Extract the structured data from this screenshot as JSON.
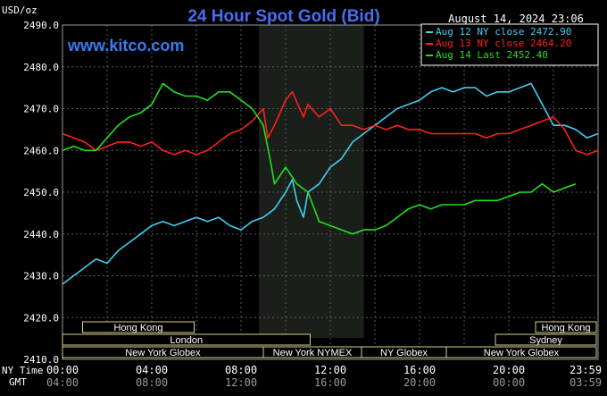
{
  "chart_data": {
    "type": "line",
    "title": "24 Hour Spot Gold (Bid)",
    "subtitle": "www.kitco.com",
    "timestamp": "August 14, 2024 23:06",
    "y_unit_label": "USD/oz",
    "ylim": [
      2410,
      2490
    ],
    "y_ticks": [
      "2490.0",
      "2480.0",
      "2470.0",
      "2460.0",
      "2450.0",
      "2440.0",
      "2430.0",
      "2420.0",
      "2410.0"
    ],
    "x_row1_label": "NY Time",
    "x_row2_label": "GMT",
    "x_ticks_ny": [
      "00:00",
      "04:00",
      "08:00",
      "12:00",
      "16:00",
      "20:00",
      "23:59"
    ],
    "x_ticks_gmt": [
      "04:00",
      "08:00",
      "12:00",
      "16:00",
      "20:00",
      "00:00",
      "03:59"
    ],
    "xlim_hours": [
      0,
      24
    ],
    "grid": true,
    "legend_position": "top-right",
    "legend": [
      {
        "label": "Aug 12 NY close 2472.90",
        "color": "#40d0f0"
      },
      {
        "label": "Aug 13 NY close 2464.20",
        "color": "#ff2020"
      },
      {
        "label": "Aug 14 Last 2452.40",
        "color": "#20e020"
      }
    ],
    "sessions": [
      {
        "name": "Hong Kong",
        "row": 0
      },
      {
        "name": "Hong Kong",
        "row": 0
      },
      {
        "name": "London",
        "row": 1
      },
      {
        "name": "Sydney",
        "row": 1
      },
      {
        "name": "New York Globex",
        "row": 2
      },
      {
        "name": "New York NYMEX",
        "row": 2
      },
      {
        "name": "NY Globex",
        "row": 2
      },
      {
        "name": "New York Globex",
        "row": 2
      }
    ],
    "series": [
      {
        "name": "Aug 12 NY close 2472.90",
        "color": "#40d0f0",
        "x": [
          0,
          0.5,
          1,
          1.5,
          2,
          2.5,
          3,
          3.5,
          4,
          4.5,
          5,
          5.5,
          6,
          6.5,
          7,
          7.5,
          8,
          8.5,
          9,
          9.5,
          10,
          10.3,
          10.5,
          10.8,
          11,
          11.5,
          12,
          12.5,
          13,
          13.5,
          14,
          14.5,
          15,
          15.5,
          16,
          16.5,
          17,
          17.5,
          18,
          18.5,
          19,
          19.5,
          20,
          20.5,
          21,
          21.5,
          22,
          22.5,
          23,
          23.5,
          24
        ],
        "y": [
          2428,
          2430,
          2432,
          2434,
          2433,
          2436,
          2438,
          2440,
          2442,
          2443,
          2442,
          2443,
          2444,
          2443,
          2444,
          2442,
          2441,
          2443,
          2444,
          2446,
          2450,
          2453,
          2448,
          2444,
          2450,
          2452,
          2456,
          2458,
          2462,
          2464,
          2466,
          2468,
          2470,
          2471,
          2472,
          2474,
          2475,
          2474,
          2475,
          2475,
          2473,
          2474,
          2474,
          2475,
          2476,
          2471,
          2466,
          2466,
          2465,
          2463,
          2464
        ]
      },
      {
        "name": "Aug 13 NY close 2464.20",
        "color": "#ff2020",
        "x": [
          0,
          0.5,
          1,
          1.5,
          2,
          2.5,
          3,
          3.5,
          4,
          4.5,
          5,
          5.5,
          6,
          6.5,
          7,
          7.5,
          8,
          8.5,
          9,
          9.2,
          9.5,
          10,
          10.3,
          10.8,
          11,
          11.5,
          12,
          12.5,
          13,
          13.5,
          14,
          14.5,
          15,
          15.5,
          16,
          16.5,
          17,
          17.5,
          18,
          18.5,
          19,
          19.5,
          20,
          20.5,
          21,
          21.5,
          22,
          22.5,
          23,
          23.5,
          24
        ],
        "y": [
          2464,
          2463,
          2462,
          2460,
          2461,
          2462,
          2462,
          2461,
          2462,
          2460,
          2459,
          2460,
          2459,
          2460,
          2462,
          2464,
          2465,
          2467,
          2470,
          2463,
          2466,
          2472,
          2474,
          2468,
          2471,
          2468,
          2470,
          2466,
          2466,
          2465,
          2466,
          2465,
          2466,
          2465,
          2465,
          2464,
          2464,
          2464,
          2464,
          2464,
          2463,
          2464,
          2464,
          2465,
          2466,
          2467,
          2468,
          2465,
          2460,
          2459,
          2460
        ]
      },
      {
        "name": "Aug 14 Last 2452.40",
        "color": "#20e020",
        "x": [
          0,
          0.5,
          1,
          1.5,
          2,
          2.5,
          3,
          3.5,
          4,
          4.5,
          5,
          5.5,
          6,
          6.5,
          7,
          7.5,
          8,
          8.5,
          9,
          9.3,
          9.5,
          10,
          10.5,
          11,
          11.5,
          12,
          12.5,
          13,
          13.5,
          14,
          14.5,
          15,
          15.5,
          16,
          16.5,
          17,
          17.5,
          18,
          18.5,
          19,
          19.5,
          20,
          20.5,
          21,
          21.5,
          22,
          22.5,
          23
        ],
        "y": [
          2460,
          2461,
          2460,
          2460,
          2463,
          2466,
          2468,
          2469,
          2471,
          2476,
          2474,
          2473,
          2473,
          2472,
          2474,
          2474,
          2472,
          2470,
          2466,
          2458,
          2452,
          2456,
          2452,
          2450,
          2443,
          2442,
          2441,
          2440,
          2441,
          2441,
          2442,
          2444,
          2446,
          2447,
          2446,
          2447,
          2447,
          2447,
          2448,
          2448,
          2448,
          2449,
          2450,
          2450,
          2452,
          2450,
          2451,
          2452
        ]
      }
    ]
  }
}
